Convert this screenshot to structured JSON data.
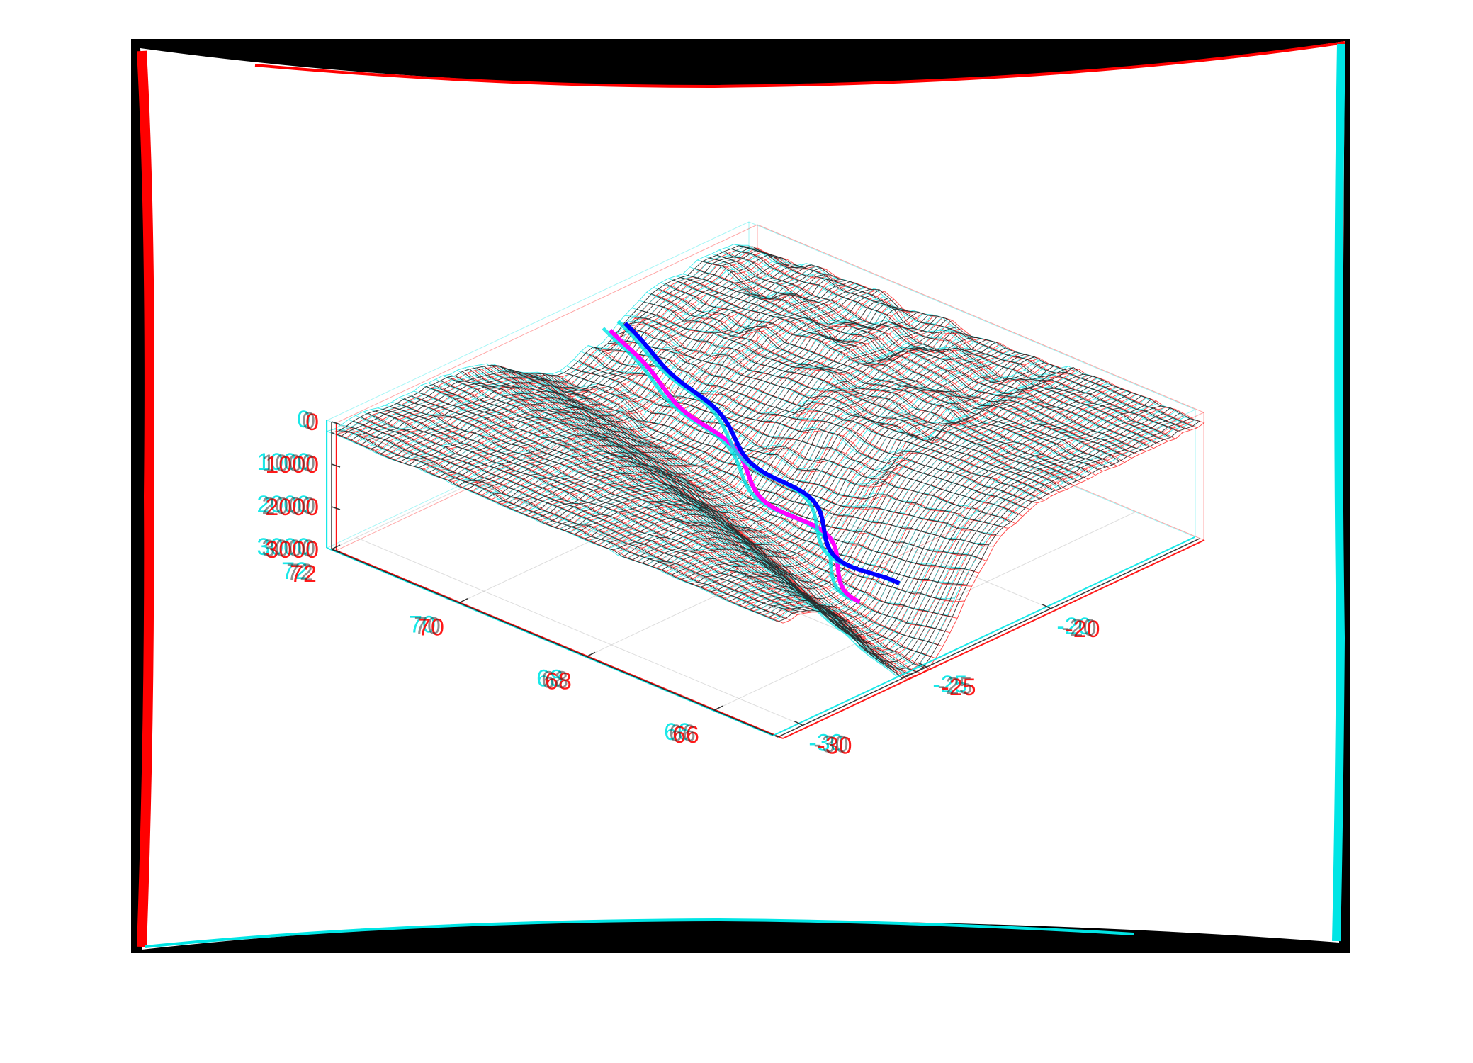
{
  "chart_data": {
    "type": "surface3d",
    "title": "",
    "rendering": "red-cyan anaglyph stereo",
    "surface_style": "wireframe mesh",
    "x_axis": {
      "label": "",
      "ticks": [
        66,
        68,
        70,
        72
      ],
      "range": [
        65,
        72
      ]
    },
    "y_axis": {
      "label": "",
      "ticks": [
        -30,
        -25,
        -20
      ],
      "range": [
        -31,
        -14
      ]
    },
    "z_axis": {
      "label": "",
      "ticks": [
        0,
        1000,
        2000,
        3000
      ],
      "range": [
        0,
        3000
      ],
      "direction": "downward (depth)"
    },
    "x_tick_labels": [
      "66",
      "68",
      "70",
      "72"
    ],
    "y_tick_labels": [
      "-30",
      "-25",
      "-20"
    ],
    "z_tick_labels": [
      "0",
      "1000",
      "2000",
      "3000"
    ],
    "series": [
      {
        "color": "#ff00ff"
      },
      {
        "color": "#0000ff"
      }
    ],
    "colors": {
      "mesh": "#1a1a1a",
      "left_eye": "#ff0000",
      "right_eye": "#00e5e5",
      "frame": "#000000"
    }
  }
}
